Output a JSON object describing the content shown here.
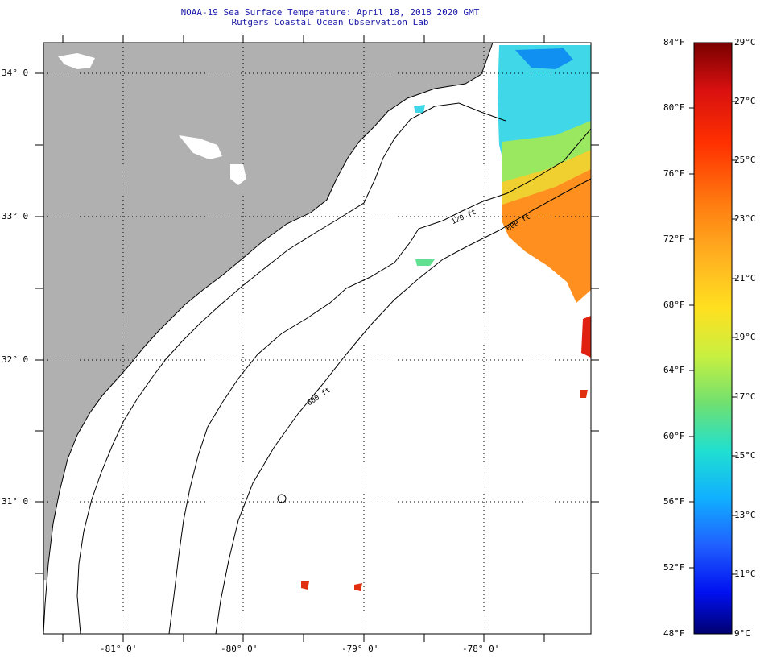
{
  "title": {
    "line1": "NOAA-19 Sea Surface Temperature:  April 18, 2018 2020 GMT",
    "line2": "Rutgers Coastal Ocean Observation Lab"
  },
  "map": {
    "lat_labels": [
      "34° 0'",
      "33° 0'",
      "32° 0'",
      "31° 0'"
    ],
    "lon_labels": [
      "-81° 0'",
      "-80° 0'",
      "-79° 0'",
      "-78° 0'"
    ],
    "contour_labels": [
      "120 ft",
      "600 ft",
      "600 ft"
    ],
    "colors": {
      "land": "#b0b0b0",
      "water_nodata": "#ffffff"
    }
  },
  "colorbar": {
    "fahrenheit": [
      "84°F",
      "80°F",
      "76°F",
      "72°F",
      "68°F",
      "64°F",
      "60°F",
      "56°F",
      "52°F",
      "48°F"
    ],
    "celsius": [
      "29°C",
      "27°C",
      "25°C",
      "23°C",
      "21°C",
      "19°C",
      "17°C",
      "15°C",
      "13°C",
      "11°C",
      "9°C"
    ],
    "gradient": [
      "#7a0000",
      "#d81010",
      "#ff3000",
      "#ff7a10",
      "#ffb020",
      "#ffe020",
      "#c8f040",
      "#70e070",
      "#20e0d0",
      "#10b0ff",
      "#2060ff",
      "#0010f0",
      "#000070"
    ]
  }
}
